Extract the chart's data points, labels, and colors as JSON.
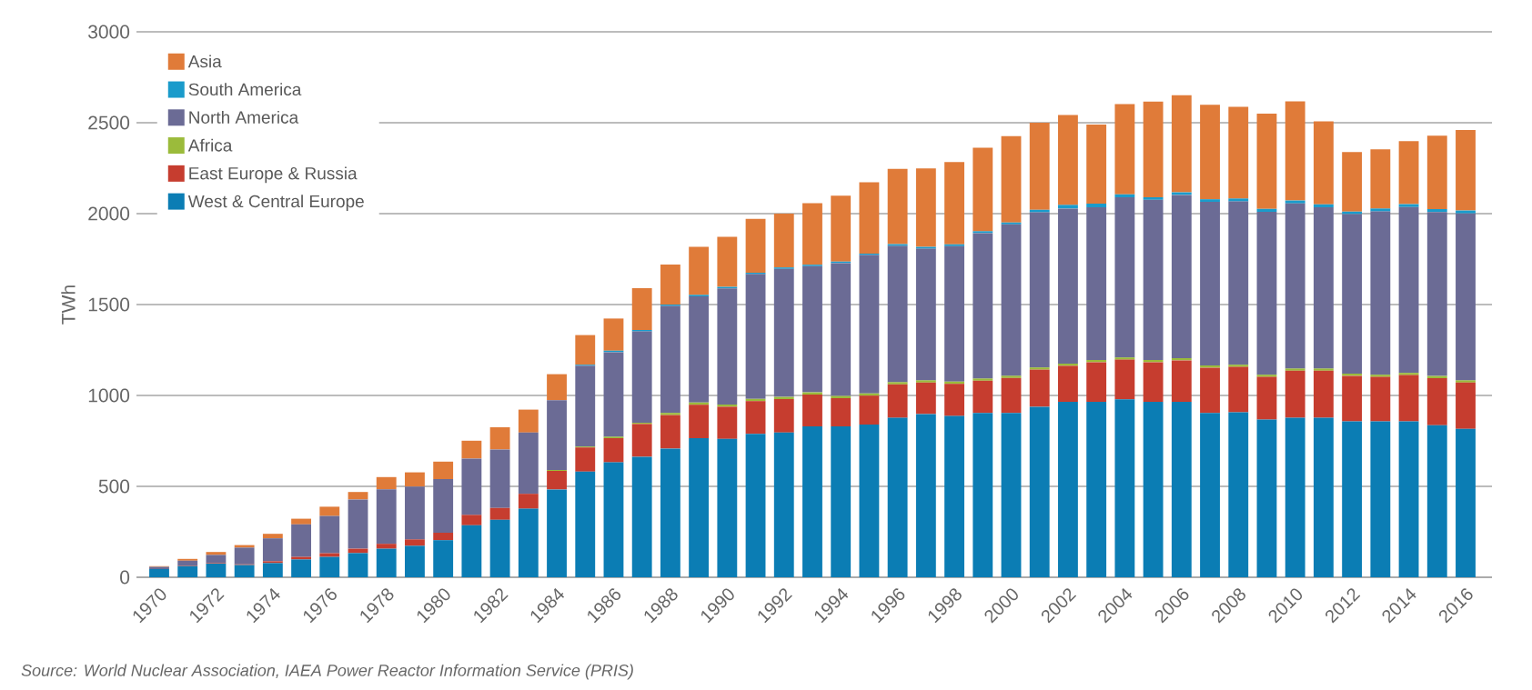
{
  "chart_data": {
    "type": "bar",
    "stacked": true,
    "ylabel": "TWh",
    "categories": [
      "1970",
      null,
      "1972",
      null,
      "1974",
      null,
      "1976",
      null,
      "1978",
      null,
      "1980",
      null,
      "1982",
      null,
      "1984",
      null,
      "1986",
      null,
      "1988",
      null,
      "1990",
      null,
      "1992",
      null,
      "1994",
      null,
      "1996",
      null,
      "1998",
      null,
      "2000",
      null,
      "2002",
      null,
      "2004",
      null,
      "2006",
      null,
      "2008",
      null,
      "2010",
      null,
      "2012",
      null,
      "2014",
      null,
      "2016"
    ],
    "series": [
      {
        "name": "West & Central Europe",
        "color": "#0b7db4",
        "values": [
          45,
          61,
          75,
          67,
          78,
          98,
          112,
          133,
          157,
          173,
          204,
          286,
          316,
          377,
          483,
          581,
          632,
          663,
          708,
          765,
          761,
          789,
          796,
          830,
          830,
          840,
          877,
          898,
          887,
          904,
          904,
          938,
          965,
          965,
          979,
          965,
          965,
          904,
          908,
          867,
          877,
          877,
          857,
          857,
          857,
          836,
          816
        ]
      },
      {
        "name": "East Europe & Russia",
        "color": "#c63d2f",
        "values": [
          0,
          3,
          3,
          4,
          10,
          14,
          20,
          24,
          27,
          35,
          41,
          57,
          65,
          82,
          102,
          133,
          133,
          180,
          184,
          184,
          177,
          180,
          184,
          175,
          155,
          159,
          184,
          173,
          177,
          177,
          192,
          204,
          198,
          218,
          218,
          218,
          228,
          249,
          249,
          235,
          259,
          259,
          251,
          245,
          255,
          259,
          255
        ]
      },
      {
        "name": "Africa",
        "color": "#9bbb3b",
        "values": [
          0,
          0,
          0,
          0,
          0,
          0,
          0,
          0,
          0,
          0,
          0,
          0,
          0,
          0,
          5,
          5,
          8,
          7,
          12,
          12,
          12,
          12,
          12,
          12,
          12,
          12,
          12,
          12,
          12,
          12,
          12,
          12,
          12,
          12,
          12,
          12,
          12,
          12,
          12,
          12,
          12,
          12,
          12,
          12,
          12,
          12,
          12
        ]
      },
      {
        "name": "North America",
        "color": "#6b6b95",
        "values": [
          12,
          27,
          45,
          92,
          126,
          179,
          205,
          271,
          300,
          291,
          295,
          310,
          322,
          337,
          384,
          445,
          465,
          502,
          588,
          584,
          639,
          686,
          704,
          694,
          731,
          761,
          749,
          724,
          745,
          800,
          833,
          853,
          853,
          840,
          881,
          881,
          898,
          900,
          898,
          896,
          908,
          887,
          877,
          898,
          912,
          902,
          918
        ]
      },
      {
        "name": "South America",
        "color": "#1a9bcb",
        "values": [
          0,
          0,
          0,
          0,
          0,
          0,
          0,
          0,
          0,
          0,
          0,
          0,
          0,
          0,
          0,
          5,
          8,
          8,
          8,
          8,
          8,
          8,
          8,
          8,
          8,
          8,
          10,
          10,
          10,
          10,
          10,
          14,
          20,
          20,
          16,
          14,
          14,
          14,
          16,
          16,
          16,
          16,
          14,
          16,
          16,
          16,
          16
        ]
      },
      {
        "name": "Asia",
        "color": "#e07b39",
        "values": [
          4,
          10,
          16,
          14,
          25,
          31,
          51,
          41,
          67,
          78,
          96,
          98,
          122,
          126,
          143,
          163,
          177,
          230,
          220,
          265,
          275,
          296,
          296,
          339,
          363,
          392,
          414,
          432,
          453,
          459,
          475,
          479,
          494,
          435,
          496,
          526,
          534,
          520,
          504,
          524,
          545,
          457,
          328,
          326,
          347,
          404,
          443
        ]
      }
    ],
    "ylim": [
      0,
      3000
    ],
    "yticks": [
      0,
      500,
      1000,
      1500,
      2000,
      2500,
      3000
    ],
    "grid": "y",
    "legend": "top left",
    "annotations": [
      "Source: World Nuclear Association, IAEA Power Reactor Information Service (PRIS)"
    ]
  }
}
